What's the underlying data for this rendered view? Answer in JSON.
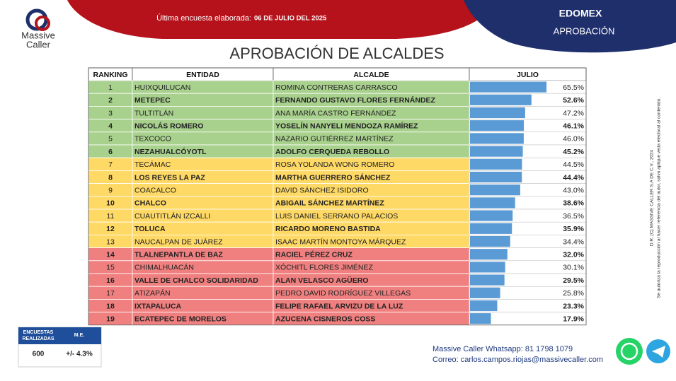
{
  "header": {
    "logo_line1": "Massive",
    "logo_line2": "Caller",
    "survey_label": "Última encuesta elaborada:",
    "survey_date": "06 DE JULIO DEL 2025",
    "region": "EDOMEX",
    "subject": "APROBACIÓN"
  },
  "title": "APROBACIÓN DE ALCALDES",
  "table": {
    "columns": [
      "RANKING",
      "ENTIDAD",
      "ALCALDE",
      "JULIO"
    ],
    "rows": [
      {
        "ranking": 1,
        "entidad": "HUIXQUILUCAN",
        "alcalde": "ROMINA CONTRERAS CARRASCO",
        "julio": 65.5,
        "julio_label": "65.5%",
        "color": "#a9d18e",
        "bold": false
      },
      {
        "ranking": 2,
        "entidad": "METEPEC",
        "alcalde": "FERNANDO GUSTAVO FLORES FERNÁNDEZ",
        "julio": 52.6,
        "julio_label": "52.6%",
        "color": "#a9d18e",
        "bold": true
      },
      {
        "ranking": 3,
        "entidad": "TULTITLÁN",
        "alcalde": "ANA MARÍA CASTRO FERNÁNDEZ",
        "julio": 47.2,
        "julio_label": "47.2%",
        "color": "#a9d18e",
        "bold": false
      },
      {
        "ranking": 4,
        "entidad": "NICOLÁS ROMERO",
        "alcalde": "YOSELÍN NANYELI MENDOZA RAMÍREZ",
        "julio": 46.1,
        "julio_label": "46.1%",
        "color": "#a9d18e",
        "bold": true
      },
      {
        "ranking": 5,
        "entidad": "TEXCOCO",
        "alcalde": "NAZARIO GUTIÉRREZ MARTÍNEZ",
        "julio": 46.0,
        "julio_label": "46.0%",
        "color": "#a9d18e",
        "bold": false
      },
      {
        "ranking": 6,
        "entidad": "NEZAHUALCÓYOTL",
        "alcalde": "ADOLFO CERQUEDA REBOLLO",
        "julio": 45.2,
        "julio_label": "45.2%",
        "color": "#a9d18e",
        "bold": true
      },
      {
        "ranking": 7,
        "entidad": "TECÁMAC",
        "alcalde": "ROSA YOLANDA WONG ROMERO",
        "julio": 44.5,
        "julio_label": "44.5%",
        "color": "#ffd966",
        "bold": false
      },
      {
        "ranking": 8,
        "entidad": "LOS REYES LA PAZ",
        "alcalde": "MARTHA GUERRERO SÁNCHEZ",
        "julio": 44.4,
        "julio_label": "44.4%",
        "color": "#ffd966",
        "bold": true
      },
      {
        "ranking": 9,
        "entidad": "COACALCO",
        "alcalde": "DAVID SÁNCHEZ ISIDORO",
        "julio": 43.0,
        "julio_label": "43.0%",
        "color": "#ffd966",
        "bold": false
      },
      {
        "ranking": 10,
        "entidad": "CHALCO",
        "alcalde": "ABIGAIL SÁNCHEZ MARTÍNEZ",
        "julio": 38.6,
        "julio_label": "38.6%",
        "color": "#ffd966",
        "bold": true
      },
      {
        "ranking": 11,
        "entidad": "CUAUTITLÁN IZCALLI",
        "alcalde": "LUIS DANIEL SERRANO PALACIOS",
        "julio": 36.5,
        "julio_label": "36.5%",
        "color": "#ffd966",
        "bold": false
      },
      {
        "ranking": 12,
        "entidad": "TOLUCA",
        "alcalde": "RICARDO MORENO BASTIDA",
        "julio": 35.9,
        "julio_label": "35.9%",
        "color": "#ffd966",
        "bold": true
      },
      {
        "ranking": 13,
        "entidad": "NAUCALPAN DE JUÁREZ",
        "alcalde": "ISAAC MARTÍN MONTOYA MÁRQUEZ",
        "julio": 34.4,
        "julio_label": "34.4%",
        "color": "#ffd966",
        "bold": false
      },
      {
        "ranking": 14,
        "entidad": "TLALNEPANTLA DE BAZ",
        "alcalde": "RACIEL PÉREZ CRUZ",
        "julio": 32.0,
        "julio_label": "32.0%",
        "color": "#f08080",
        "bold": true
      },
      {
        "ranking": 15,
        "entidad": "CHIMALHUACÁN",
        "alcalde": "XÓCHITL FLORES JIMÉNEZ",
        "julio": 30.1,
        "julio_label": "30.1%",
        "color": "#f08080",
        "bold": false
      },
      {
        "ranking": 16,
        "entidad": "VALLE DE CHALCO SOLIDARIDAD",
        "alcalde": "ALAN VELASCO AGÜERO",
        "julio": 29.5,
        "julio_label": "29.5%",
        "color": "#f08080",
        "bold": true
      },
      {
        "ranking": 17,
        "entidad": "ATIZAPÁN",
        "alcalde": "PEDRO DAVID RODRÍGUEZ VILLEGAS",
        "julio": 25.8,
        "julio_label": "25.8%",
        "color": "#f08080",
        "bold": false
      },
      {
        "ranking": 18,
        "entidad": "IXTAPALUCA",
        "alcalde": "FELIPE RAFAEL ARVIZU DE LA LUZ",
        "julio": 23.3,
        "julio_label": "23.3%",
        "color": "#f08080",
        "bold": true
      },
      {
        "ranking": 19,
        "entidad": "ECATEPEC DE MORELOS",
        "alcalde": "AZUCENA CISNEROS COSS",
        "julio": 17.9,
        "julio_label": "17.9%",
        "color": "#f08080",
        "bold": true
      }
    ],
    "bar_color": "#5b9bd5"
  },
  "sample": {
    "label1": "ENCUESTAS",
    "label2": "REALIZADAS",
    "me_label": "M.E.",
    "count": 600,
    "margin": "+/- 4.3%"
  },
  "contact": {
    "whatsapp": "Massive Caller Whatsapp: 81 1798 1079",
    "email": "Correo: carlos.campos.riojas@massivecaller.com"
  },
  "legal": {
    "line1": "D.R. (C) MASSIVE CALLER S.A DE C.V., 2024",
    "line2": "Se autoriza la reproducción al hacer referencia del autor, salvo aplique veda electoral al contenido."
  }
}
